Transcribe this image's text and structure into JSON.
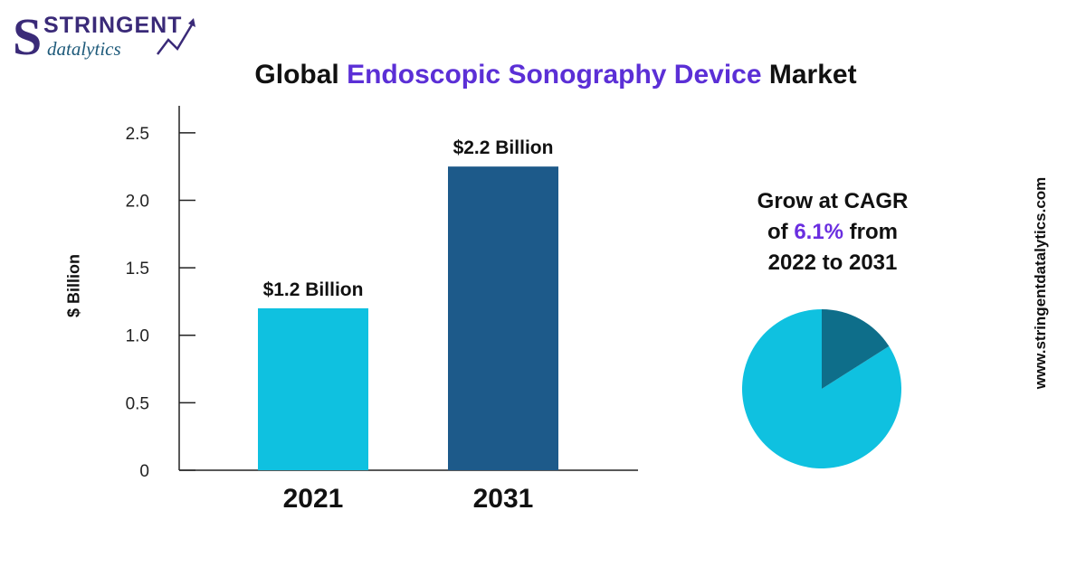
{
  "brand": {
    "line1": "STRINGENT",
    "line2": "datalytics"
  },
  "title": {
    "prefix": "Global ",
    "highlight": "Endoscopic Sonography Device",
    "suffix": " Market"
  },
  "cagr": {
    "line1": "Grow at CAGR",
    "of": "of ",
    "rate": "6.1%",
    "from": " from",
    "line3": "2022 to 2031"
  },
  "website": "www.stringentdatalytics.com",
  "colors": {
    "accent": "#5b2fd6",
    "bar_2021": "#0fc1e0",
    "bar_2031": "#1d5a8a",
    "pie_main": "#0fc1e0",
    "pie_slice": "#0e6e8a"
  },
  "chart_data": [
    {
      "type": "bar",
      "ylabel": "$ Billion",
      "ylim": [
        0,
        2.7
      ],
      "yticks": [
        0,
        0.5,
        1.0,
        1.5,
        2.0,
        2.5
      ],
      "ytick_labels": [
        "0",
        "0.5",
        "1.0",
        "1.5",
        "2.0",
        "2.5"
      ],
      "categories": [
        "2021",
        "2031"
      ],
      "values": [
        1.2,
        2.25
      ],
      "data_labels": [
        "$1.2 Billion",
        "$2.2 Billion"
      ],
      "grid": false
    },
    {
      "type": "pie",
      "values": [
        84,
        16
      ],
      "colors": [
        "#0fc1e0",
        "#0e6e8a"
      ]
    }
  ]
}
